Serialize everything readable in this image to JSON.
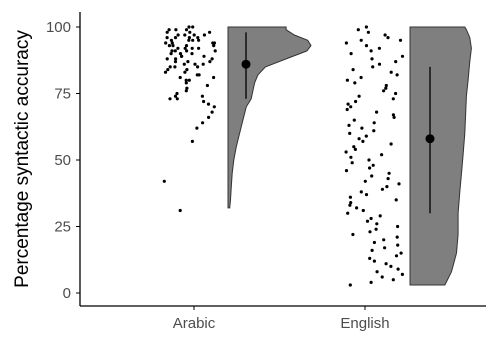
{
  "chart_data": {
    "type": "raincloud",
    "title": "",
    "xlabel": "",
    "ylabel": "Percentage syntactic accuracy",
    "categories": [
      "Arabic",
      "English"
    ],
    "ylim": [
      0,
      100
    ],
    "yticks": [
      0,
      25,
      50,
      75,
      100
    ],
    "grid": false,
    "legend": "none",
    "colors": {
      "cloud": "#7f7f7f",
      "point": "#000000",
      "axis": "#000000"
    },
    "summary": [
      {
        "category": "Arabic",
        "mean": 86,
        "interval": [
          73,
          98
        ]
      },
      {
        "category": "English",
        "mean": 58,
        "interval": [
          30,
          85
        ]
      }
    ],
    "distributions": [
      {
        "category": "Arabic",
        "range": [
          32,
          100
        ],
        "density": [
          [
            32,
            0.02
          ],
          [
            35,
            0.03
          ],
          [
            40,
            0.04
          ],
          [
            45,
            0.05
          ],
          [
            50,
            0.07
          ],
          [
            55,
            0.1
          ],
          [
            60,
            0.14
          ],
          [
            65,
            0.18
          ],
          [
            70,
            0.22
          ],
          [
            73,
            0.28
          ],
          [
            76,
            0.3
          ],
          [
            79,
            0.32
          ],
          [
            82,
            0.36
          ],
          [
            85,
            0.45
          ],
          [
            88,
            0.7
          ],
          [
            91,
            0.95
          ],
          [
            93,
            1.0
          ],
          [
            95,
            0.96
          ],
          [
            97,
            0.8
          ],
          [
            99,
            0.7
          ],
          [
            100,
            0.7
          ]
        ]
      },
      {
        "category": "English",
        "range": [
          3,
          100
        ],
        "density": [
          [
            3,
            0.42
          ],
          [
            8,
            0.5
          ],
          [
            15,
            0.56
          ],
          [
            22,
            0.58
          ],
          [
            30,
            0.58
          ],
          [
            38,
            0.6
          ],
          [
            45,
            0.62
          ],
          [
            52,
            0.64
          ],
          [
            60,
            0.66
          ],
          [
            67,
            0.67
          ],
          [
            74,
            0.68
          ],
          [
            80,
            0.7
          ],
          [
            87,
            0.72
          ],
          [
            92,
            0.74
          ],
          [
            96,
            0.72
          ],
          [
            99,
            0.68
          ],
          [
            100,
            0.66
          ]
        ]
      }
    ],
    "points": [
      {
        "category": "Arabic",
        "values": [
          100,
          100,
          99,
          99,
          99,
          98,
          98,
          98,
          97,
          97,
          97,
          97,
          96,
          96,
          96,
          96,
          95,
          95,
          95,
          95,
          94,
          94,
          94,
          94,
          93,
          93,
          93,
          93,
          92,
          92,
          92,
          92,
          91,
          91,
          91,
          91,
          90,
          90,
          90,
          89,
          89,
          89,
          88,
          88,
          88,
          87,
          87,
          87,
          86,
          86,
          86,
          85,
          85,
          85,
          84,
          84,
          83,
          83,
          82,
          82,
          81,
          81,
          80,
          80,
          79,
          78,
          77,
          76,
          75,
          74,
          74,
          73,
          73,
          72,
          71,
          70,
          68,
          66,
          64,
          62,
          57,
          42,
          31
        ]
      },
      {
        "category": "English",
        "values": [
          100,
          99,
          98,
          97,
          96,
          95,
          95,
          94,
          93,
          92,
          91,
          90,
          89,
          88,
          87,
          86,
          85,
          84,
          83,
          82,
          81,
          80,
          79,
          78,
          77,
          76,
          75,
          74,
          73,
          72,
          71,
          70,
          69,
          68,
          67,
          66,
          65,
          64,
          63,
          62,
          61,
          60,
          59,
          58,
          57,
          56,
          55,
          54,
          53,
          52,
          51,
          50,
          49,
          48,
          47,
          46,
          45,
          44,
          43,
          42,
          41,
          40,
          39,
          38,
          37,
          36,
          35,
          34,
          33,
          32,
          31,
          30,
          29,
          28,
          27,
          26,
          25,
          24,
          23,
          22,
          21,
          20,
          19,
          18,
          17,
          16,
          15,
          14,
          13,
          12,
          11,
          10,
          9,
          8,
          7,
          6,
          5,
          4,
          3
        ]
      }
    ]
  }
}
